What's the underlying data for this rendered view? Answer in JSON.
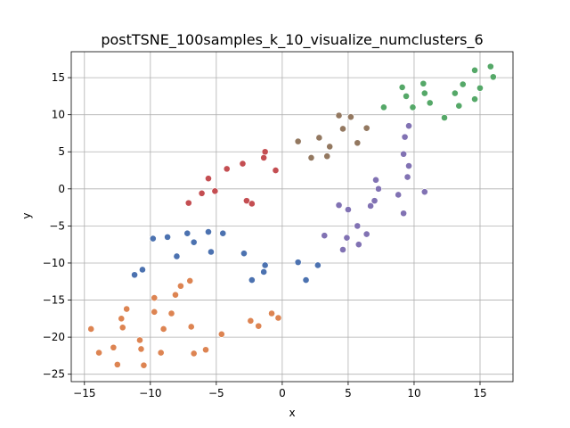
{
  "chart_data": {
    "type": "scatter",
    "title": "postTSNE_100samples_k_10_visualize_numclusters_6",
    "xlabel": "x",
    "ylabel": "y",
    "xlim": [
      -16,
      17.5
    ],
    "ylim": [
      -26,
      18.5
    ],
    "xticks": [
      -15,
      -10,
      -5,
      0,
      5,
      10,
      15
    ],
    "yticks": [
      -25,
      -20,
      -15,
      -10,
      -5,
      0,
      5,
      10,
      15
    ],
    "grid": true,
    "legend": "none",
    "series": [
      {
        "color": "#4c72b0",
        "points": [
          [
            -9.8,
            -6.7
          ],
          [
            -8.7,
            -6.5
          ],
          [
            -7.2,
            -6.0
          ],
          [
            -8.0,
            -9.1
          ],
          [
            -6.7,
            -7.2
          ],
          [
            -5.6,
            -5.8
          ],
          [
            -4.5,
            -6.0
          ],
          [
            -5.4,
            -8.5
          ],
          [
            -10.6,
            -10.9
          ],
          [
            -11.2,
            -11.6
          ],
          [
            -2.9,
            -8.7
          ],
          [
            -2.3,
            -12.3
          ],
          [
            -1.3,
            -10.3
          ],
          [
            -1.4,
            -11.2
          ],
          [
            1.2,
            -9.9
          ],
          [
            1.8,
            -12.3
          ],
          [
            2.7,
            -10.3
          ]
        ]
      },
      {
        "color": "#dd8452",
        "points": [
          [
            -14.5,
            -18.9
          ],
          [
            -13.9,
            -22.1
          ],
          [
            -12.8,
            -21.4
          ],
          [
            -12.5,
            -23.7
          ],
          [
            -12.2,
            -17.5
          ],
          [
            -12.1,
            -18.7
          ],
          [
            -11.8,
            -16.2
          ],
          [
            -10.8,
            -20.4
          ],
          [
            -10.7,
            -21.6
          ],
          [
            -10.5,
            -23.8
          ],
          [
            -9.7,
            -14.7
          ],
          [
            -9.7,
            -16.6
          ],
          [
            -9.2,
            -22.1
          ],
          [
            -9.0,
            -18.9
          ],
          [
            -8.4,
            -16.8
          ],
          [
            -8.1,
            -14.3
          ],
          [
            -7.7,
            -13.1
          ],
          [
            -7.0,
            -12.4
          ],
          [
            -6.9,
            -18.6
          ],
          [
            -6.7,
            -22.2
          ],
          [
            -5.8,
            -21.7
          ],
          [
            -4.6,
            -19.6
          ],
          [
            -2.4,
            -17.8
          ],
          [
            -1.8,
            -18.5
          ],
          [
            -0.8,
            -16.8
          ],
          [
            -0.3,
            -17.4
          ]
        ]
      },
      {
        "color": "#55a868",
        "points": [
          [
            7.7,
            11.0
          ],
          [
            9.1,
            13.7
          ],
          [
            9.4,
            12.5
          ],
          [
            9.9,
            11.0
          ],
          [
            10.7,
            14.2
          ],
          [
            10.8,
            12.9
          ],
          [
            11.2,
            11.6
          ],
          [
            12.3,
            9.6
          ],
          [
            13.1,
            12.9
          ],
          [
            13.4,
            11.2
          ],
          [
            13.7,
            14.1
          ],
          [
            14.6,
            12.1
          ],
          [
            14.6,
            16.0
          ],
          [
            15.0,
            13.6
          ],
          [
            15.8,
            16.5
          ],
          [
            16.0,
            15.1
          ]
        ]
      },
      {
        "color": "#c44e52",
        "points": [
          [
            -7.1,
            -1.9
          ],
          [
            -6.1,
            -0.6
          ],
          [
            -5.6,
            1.4
          ],
          [
            -5.1,
            -0.3
          ],
          [
            -4.2,
            2.7
          ],
          [
            -3.0,
            3.4
          ],
          [
            -2.7,
            -1.6
          ],
          [
            -2.3,
            -2.0
          ],
          [
            -1.4,
            4.2
          ],
          [
            -1.3,
            5.0
          ],
          [
            -0.5,
            2.5
          ]
        ]
      },
      {
        "color": "#8172b3",
        "points": [
          [
            3.2,
            -6.3
          ],
          [
            4.3,
            -2.2
          ],
          [
            4.6,
            -8.2
          ],
          [
            4.9,
            -6.6
          ],
          [
            5.0,
            -2.8
          ],
          [
            5.7,
            -5.0
          ],
          [
            5.8,
            -7.5
          ],
          [
            6.4,
            -6.1
          ],
          [
            6.7,
            -2.3
          ],
          [
            7.0,
            -1.6
          ],
          [
            7.1,
            1.2
          ],
          [
            7.3,
            0.0
          ],
          [
            8.8,
            -0.8
          ],
          [
            9.2,
            -3.3
          ],
          [
            9.2,
            4.7
          ],
          [
            9.3,
            7.0
          ],
          [
            9.5,
            1.6
          ],
          [
            9.6,
            8.5
          ],
          [
            9.6,
            3.1
          ],
          [
            10.8,
            -0.4
          ]
        ]
      },
      {
        "color": "#937860",
        "points": [
          [
            1.2,
            6.4
          ],
          [
            2.2,
            4.2
          ],
          [
            2.8,
            6.9
          ],
          [
            3.4,
            4.4
          ],
          [
            3.6,
            5.7
          ],
          [
            4.3,
            9.9
          ],
          [
            4.6,
            8.1
          ],
          [
            5.2,
            9.7
          ],
          [
            5.7,
            6.2
          ],
          [
            6.4,
            8.2
          ]
        ]
      }
    ]
  }
}
